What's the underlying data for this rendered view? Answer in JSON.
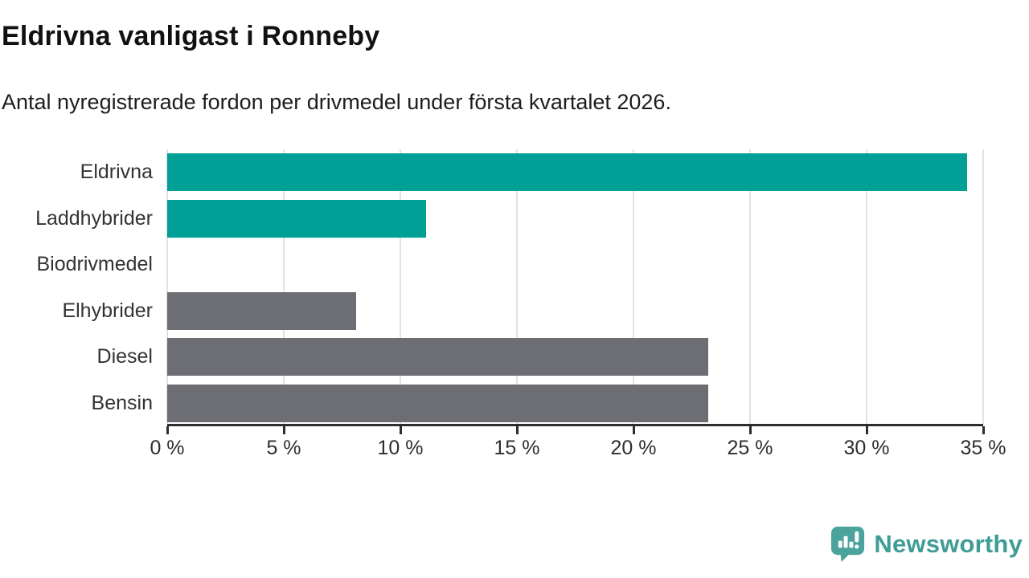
{
  "header": {
    "title": "Eldrivna vanligast i Ronneby",
    "subtitle": "Antal nyregistrerade fordon per drivmedel under första kvartalet 2026."
  },
  "chart_data": {
    "type": "bar",
    "orientation": "horizontal",
    "title": "Eldrivna vanligast i Ronneby",
    "subtitle": "Antal nyregistrerade fordon per drivmedel under första kvartalet 2026.",
    "categories": [
      "Eldrivna",
      "Laddhybrider",
      "Biodrivmedel",
      "Elhybrider",
      "Diesel",
      "Bensin"
    ],
    "values": [
      34.3,
      11.1,
      0,
      8.1,
      23.2,
      23.2
    ],
    "unit": "%",
    "bar_colors": [
      "#00a096",
      "#00a096",
      "#00a096",
      "#6d6d74",
      "#6d6d74",
      "#6d6d74"
    ],
    "xlabel": "",
    "ylabel": "",
    "xlim": [
      0,
      35
    ],
    "x_ticks": [
      0,
      5,
      10,
      15,
      20,
      25,
      30,
      35
    ],
    "x_tick_labels": [
      "0 %",
      "5 %",
      "10 %",
      "15 %",
      "20 %",
      "25 %",
      "30 %",
      "35 %"
    ],
    "grid": "vertical-on",
    "legend": "none"
  },
  "footer": {
    "brand": "Newsworthy"
  },
  "colors": {
    "accent_teal": "#00a096",
    "neutral_gray": "#6d6d74",
    "logo_teal": "#4aa39c",
    "wordmark_teal": "#3f9d96",
    "axis": "#2e2e2e",
    "gridline": "#e2e2e2",
    "background": "#ffffff"
  }
}
